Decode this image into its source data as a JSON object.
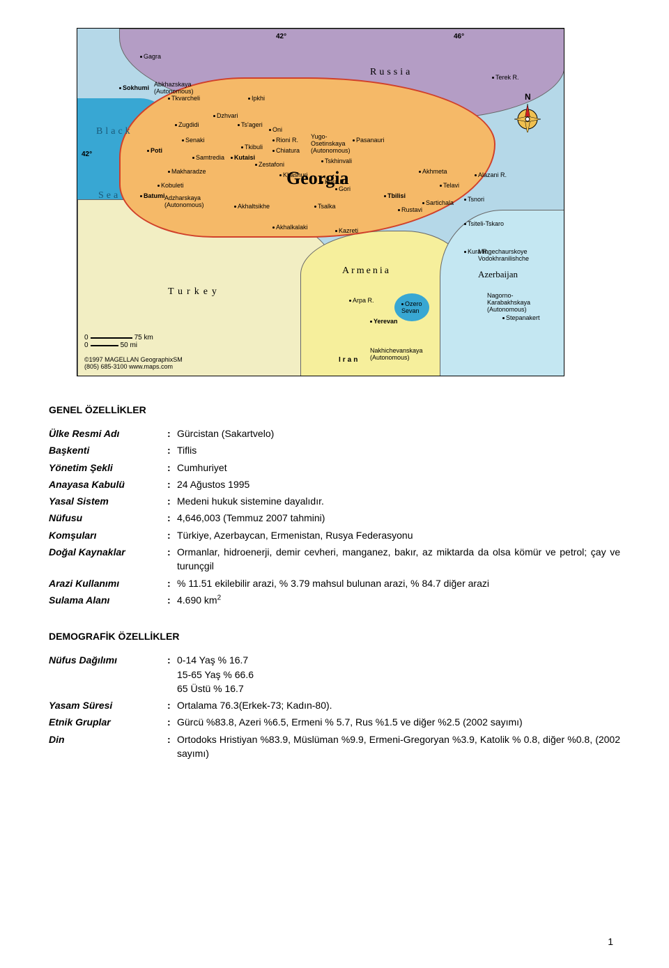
{
  "map": {
    "coords": {
      "lon1": "42°",
      "lon2": "46°",
      "lat1": "42°"
    },
    "country_label": "Georgia",
    "compass_n": "N",
    "countries": {
      "russia": "Russia",
      "turkey": "Turkey",
      "armenia": "Armenia",
      "azerbaijan": "Azerbaijan",
      "iran": "Iran",
      "black_sea1": "Black",
      "black_sea2": "Sea"
    },
    "regions": {
      "abkhaz": "Abkhazskaya\n(Autonomous)",
      "adzhar": "Adzharskaya\n(Autonomous)",
      "yugo": "Yugo-\nOsetinskaya\n(Autonomous)",
      "nakh": "Nakhichevanskaya\n(Autonomous)",
      "nkar": "Nagorno-\nKarabakhskaya\n(Autonomous)",
      "ming": "Mingechaurskoye\nVodokhranilishche"
    },
    "cities": [
      "Gagra",
      "Sokhumi",
      "Tkvarcheli",
      "Zugdidi",
      "Poti",
      "Senaki",
      "Samtredia",
      "Makharadze",
      "Kobuleti",
      "Batumi",
      "Dzhvari",
      "Ipkhi",
      "Ts'ageri",
      "Oni",
      "Tkibuli",
      "Kutaisi",
      "Chiatura",
      "Zestafoni",
      "Khashuri",
      "Akhaltsikhe",
      "Akhalkalaki",
      "Tsalka",
      "Pasanauri",
      "Tskhinvali",
      "Gori",
      "Kazreti",
      "Tbilisi",
      "Rustavi",
      "Akhmeta",
      "Telavi",
      "Sartichala",
      "Tsnori",
      "Tsiteli-Tskaro",
      "Terek R.",
      "Alazani R.",
      "Arpa R.",
      "Yerevan",
      "Stepanakert",
      "Rioni R.",
      "Kura R.",
      "Kura R.",
      "Ozero\nSevan"
    ],
    "city_positions": [
      [
        90,
        35
      ],
      [
        60,
        80,
        "bold"
      ],
      [
        130,
        95
      ],
      [
        140,
        133
      ],
      [
        100,
        170,
        "bold"
      ],
      [
        150,
        155
      ],
      [
        165,
        180
      ],
      [
        130,
        200
      ],
      [
        115,
        220
      ],
      [
        90,
        235,
        "bold"
      ],
      [
        195,
        120
      ],
      [
        245,
        95
      ],
      [
        230,
        133
      ],
      [
        275,
        140
      ],
      [
        235,
        165
      ],
      [
        220,
        180,
        "bold"
      ],
      [
        280,
        170
      ],
      [
        255,
        190
      ],
      [
        290,
        205
      ],
      [
        225,
        250
      ],
      [
        280,
        280
      ],
      [
        340,
        250
      ],
      [
        395,
        155
      ],
      [
        350,
        185
      ],
      [
        370,
        225
      ],
      [
        370,
        285
      ],
      [
        440,
        235,
        "bold"
      ],
      [
        460,
        255
      ],
      [
        490,
        200
      ],
      [
        520,
        220
      ],
      [
        495,
        245
      ],
      [
        555,
        240
      ],
      [
        555,
        275
      ],
      [
        595,
        65
      ],
      [
        570,
        205
      ],
      [
        390,
        385
      ],
      [
        420,
        415,
        "bold"
      ],
      [
        610,
        410
      ],
      [
        280,
        155
      ],
      [
        350,
        215
      ],
      [
        555,
        315
      ],
      [
        465,
        390
      ]
    ],
    "scale": {
      "km0": "0",
      "km": "75 km",
      "mi0": "0",
      "mi": "50 mi"
    },
    "copyright": "©1997 MAGELLAN GeographixSM\n(805) 685-3100 www.maps.com"
  },
  "sections": {
    "general_title": "GENEL ÖZELLİKLER",
    "demog_title": "DEMOGRAFİK ÖZELLİKLER"
  },
  "general": [
    {
      "label": "Ülke Resmi Adı",
      "value": "Gürcistan (Sakartvelo)"
    },
    {
      "label": "Başkenti",
      "value": "Tiflis"
    },
    {
      "label": "Yönetim Şekli",
      "value": "Cumhuriyet"
    },
    {
      "label": "Anayasa Kabulü",
      "value": "24 Ağustos 1995"
    },
    {
      "label": "Yasal Sistem",
      "value": "Medeni hukuk sistemine dayalıdır."
    },
    {
      "label": "Nüfusu",
      "value": "4,646,003 (Temmuz 2007 tahmini)"
    },
    {
      "label": "Komşuları",
      "value": "Türkiye, Azerbaycan, Ermenistan, Rusya Federasyonu"
    },
    {
      "label": "Doğal Kaynaklar",
      "value": "Ormanlar, hidroenerji, demir cevheri, manganez, bakır, az miktarda da olsa kömür ve petrol; çay ve turunçgil"
    },
    {
      "label": "Arazi Kullanımı",
      "value": "% 11.51 ekilebilir arazi, % 3.79 mahsul bulunan arazi, % 84.7 diğer arazi"
    },
    {
      "label": "Sulama Alanı",
      "value": "4.690 km",
      "sup": "2"
    }
  ],
  "demographic": [
    {
      "label": "Nüfus Dağılımı",
      "value": "0-14 Yaş % 16.7\n15-65 Yaş % 66.6\n65 Üstü % 16.7"
    },
    {
      "label": "Yasam Süresi",
      "value": "Ortalama 76.3(Erkek-73; Kadın-80)."
    },
    {
      "label": "Etnik Gruplar",
      "value": "Gürcü %83.8, Azeri %6.5, Ermeni % 5.7, Rus %1.5 ve diğer %2.5 (2002 sayımı)"
    },
    {
      "label": "Din",
      "value": "Ortodoks Hristiyan %83.9, Müslüman %9.9, Ermeni-Gregoryan %3.9, Katolik % 0.8, diğer %0.8, (2002 sayımı)"
    }
  ],
  "colors": {
    "sea": "#38a7d3",
    "georgia_fill": "#f5b968",
    "georgia_border": "#d0402a",
    "russia_fill": "#b49dc5",
    "turkey_fill": "#f2eec3",
    "armenia_fill": "#f6ef9c",
    "azerbaijan_fill": "#c4e7f2",
    "background_land": "#b5d8e8"
  },
  "page_number": "1"
}
